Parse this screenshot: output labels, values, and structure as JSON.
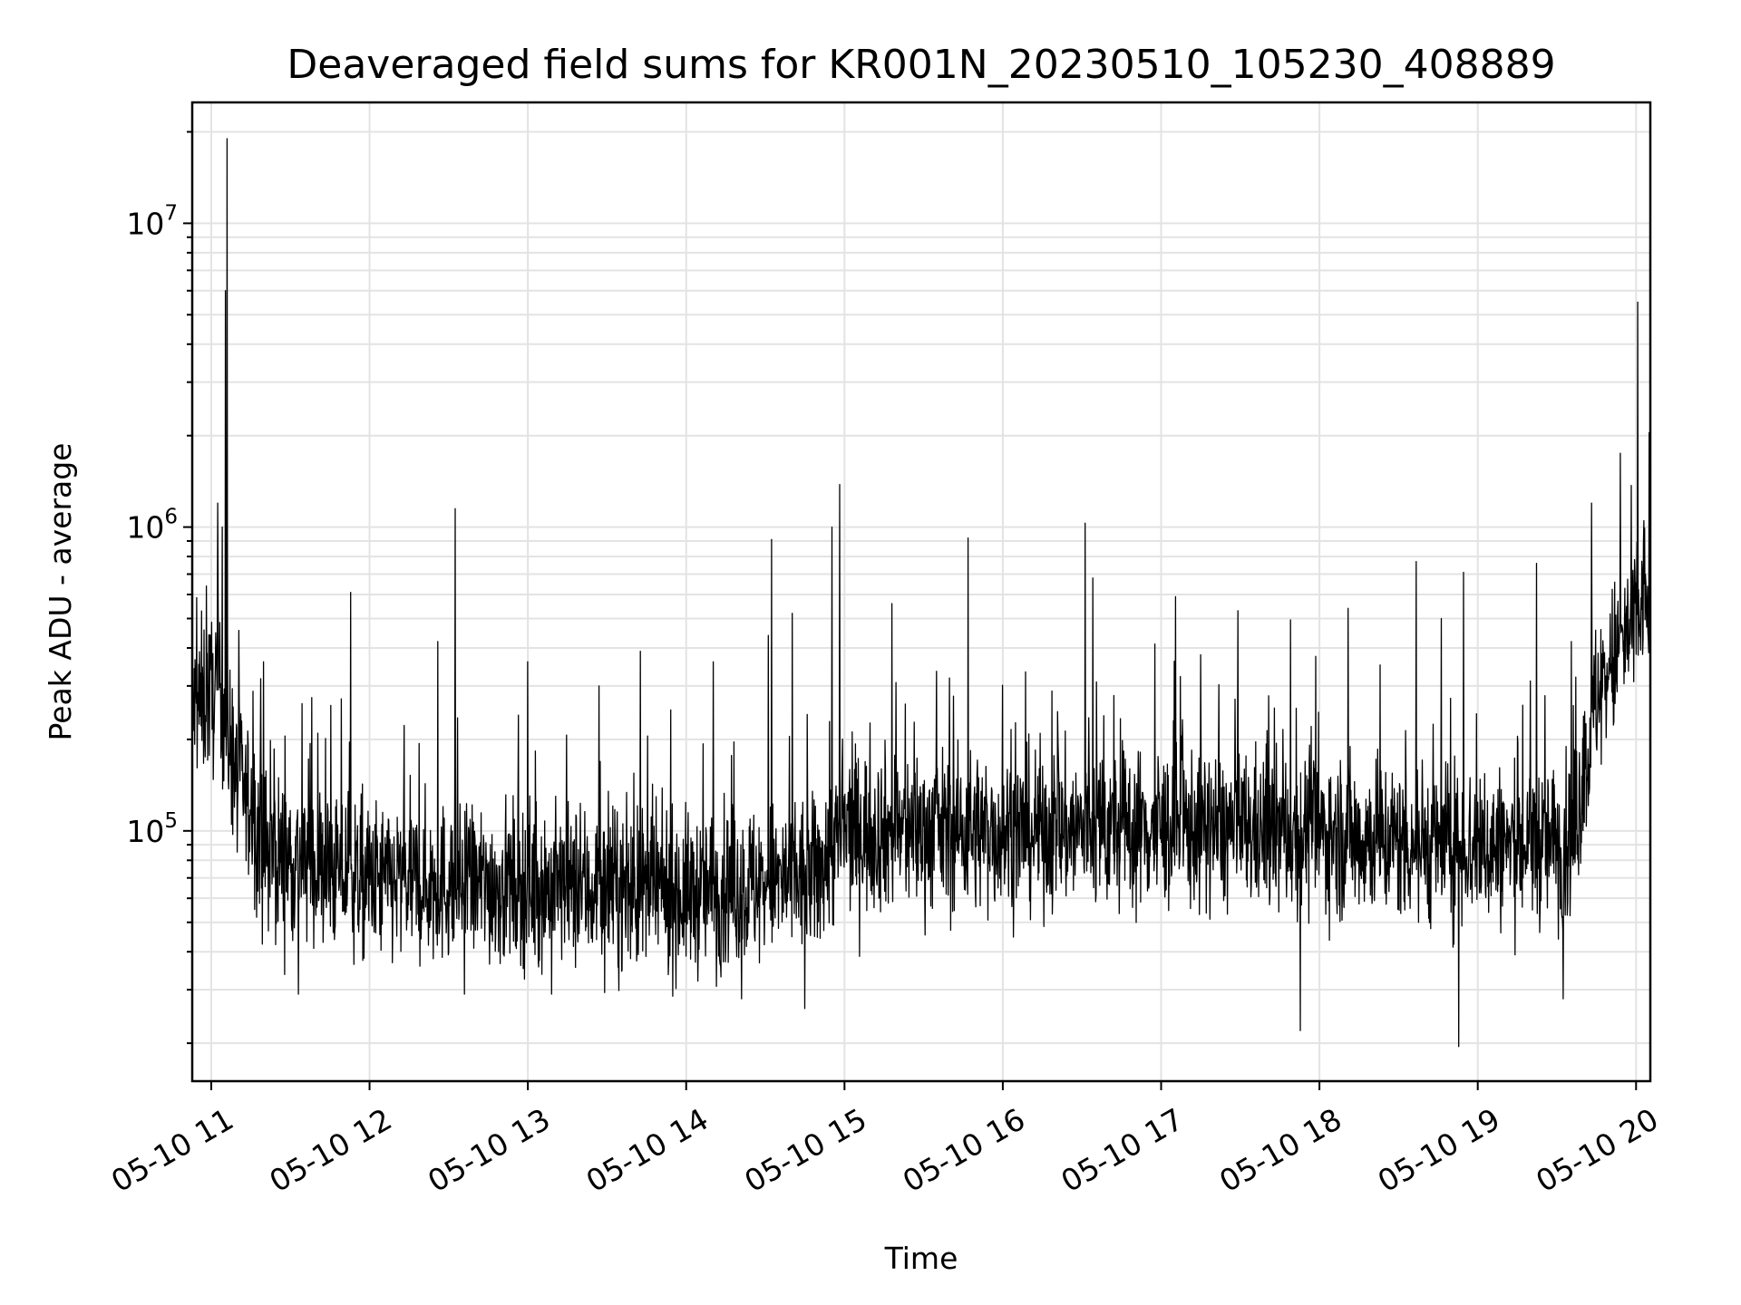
{
  "chart_data": {
    "type": "line",
    "title": "Deaveraged field sums for KR001N_20230510_105230_408889",
    "xlabel": "Time",
    "ylabel": "Peak ADU - average",
    "x_ticks": [
      "05-10 11",
      "05-10 12",
      "05-10 13",
      "05-10 14",
      "05-10 15",
      "05-10 16",
      "05-10 17",
      "05-10 18",
      "05-10 19",
      "05-10 20"
    ],
    "x_tick_hours": [
      11,
      12,
      13,
      14,
      15,
      16,
      17,
      18,
      19,
      20
    ],
    "y_ticks": [
      {
        "base": "10",
        "exp": "5",
        "value": 100000
      },
      {
        "base": "10",
        "exp": "6",
        "value": 1000000
      },
      {
        "base": "10",
        "exp": "7",
        "value": 10000000
      }
    ],
    "yscale": "log",
    "xlim_hours": [
      10.88,
      20.09
    ],
    "ylim": [
      15000,
      25000000
    ],
    "grid": true,
    "line_color": "#000000",
    "baseline_profile": [
      {
        "hour": 10.88,
        "value": 250000
      },
      {
        "hour": 11.05,
        "value": 300000
      },
      {
        "hour": 11.15,
        "value": 160000
      },
      {
        "hour": 11.35,
        "value": 85000
      },
      {
        "hour": 12.0,
        "value": 68000
      },
      {
        "hour": 13.0,
        "value": 66000
      },
      {
        "hour": 14.0,
        "value": 62000
      },
      {
        "hour": 14.8,
        "value": 70000
      },
      {
        "hour": 15.0,
        "value": 100000
      },
      {
        "hour": 16.0,
        "value": 100000
      },
      {
        "hour": 17.0,
        "value": 102000
      },
      {
        "hour": 18.0,
        "value": 98000
      },
      {
        "hour": 19.0,
        "value": 88000
      },
      {
        "hour": 19.6,
        "value": 92000
      },
      {
        "hour": 19.75,
        "value": 280000
      },
      {
        "hour": 20.09,
        "value": 600000
      }
    ],
    "spikes": [
      {
        "hour": 10.97,
        "value": 640000
      },
      {
        "hour": 11.04,
        "value": 1200000
      },
      {
        "hour": 11.07,
        "value": 1000000
      },
      {
        "hour": 11.09,
        "value": 6000000
      },
      {
        "hour": 11.1,
        "value": 19000000
      },
      {
        "hour": 11.33,
        "value": 360000
      },
      {
        "hour": 11.88,
        "value": 610000
      },
      {
        "hour": 12.43,
        "value": 420000
      },
      {
        "hour": 12.54,
        "value": 1150000
      },
      {
        "hour": 13.0,
        "value": 360000
      },
      {
        "hour": 13.45,
        "value": 300000
      },
      {
        "hour": 13.71,
        "value": 390000
      },
      {
        "hour": 14.17,
        "value": 360000
      },
      {
        "hour": 14.52,
        "value": 440000
      },
      {
        "hour": 14.54,
        "value": 910000
      },
      {
        "hour": 14.67,
        "value": 520000
      },
      {
        "hour": 14.92,
        "value": 1000000
      },
      {
        "hour": 14.97,
        "value": 1380000
      },
      {
        "hour": 15.3,
        "value": 560000
      },
      {
        "hour": 15.78,
        "value": 920000
      },
      {
        "hour": 16.52,
        "value": 1030000
      },
      {
        "hour": 16.57,
        "value": 680000
      },
      {
        "hour": 17.09,
        "value": 590000
      },
      {
        "hour": 17.25,
        "value": 380000
      },
      {
        "hour": 18.18,
        "value": 540000
      },
      {
        "hour": 18.61,
        "value": 770000
      },
      {
        "hour": 18.77,
        "value": 500000
      },
      {
        "hour": 18.91,
        "value": 710000
      },
      {
        "hour": 19.37,
        "value": 760000
      },
      {
        "hour": 19.59,
        "value": 420000
      },
      {
        "hour": 19.72,
        "value": 1200000
      },
      {
        "hour": 19.9,
        "value": 1750000
      },
      {
        "hour": 20.01,
        "value": 5500000
      },
      {
        "hour": 20.05,
        "value": 1050000
      }
    ],
    "dips": [
      {
        "hour": 11.55,
        "value": 29000
      },
      {
        "hour": 12.6,
        "value": 29000
      },
      {
        "hour": 13.15,
        "value": 29000
      },
      {
        "hour": 14.35,
        "value": 28000
      },
      {
        "hour": 14.75,
        "value": 26000
      },
      {
        "hour": 17.88,
        "value": 22000
      },
      {
        "hour": 18.88,
        "value": 19500
      },
      {
        "hour": 19.54,
        "value": 28000
      }
    ]
  }
}
